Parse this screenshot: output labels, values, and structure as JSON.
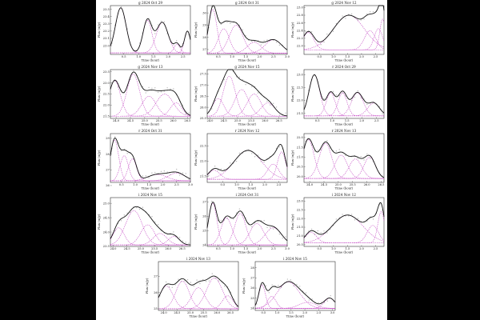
{
  "figure": {
    "background_color": "#000000",
    "sheet_color": "#ffffff",
    "total_color": "#111111",
    "component_color": "#c03fc0",
    "point_color": "#b9b9b9"
  },
  "chart_data": [
    {
      "type": "line",
      "title": "g 2024 Oct 29",
      "xlabel": "Time (hour)",
      "ylabel": "Flux (mJy)",
      "xlim": [
        0.05,
        2.75
      ],
      "ylim": [
        22.88,
        23.55
      ],
      "xticks": [
        0.5,
        1.0,
        1.5,
        2.0,
        2.5
      ],
      "xtick_labels": [
        "0.5",
        "1.0",
        "1.5",
        "2.0",
        "2.5"
      ],
      "yticks": [
        23.0,
        23.1,
        23.2,
        23.3,
        23.4,
        23.5
      ],
      "ytick_labels": [
        "23.0",
        "23.1",
        "23.2",
        "23.3",
        "23.4",
        "23.5"
      ],
      "baseline": 22.9,
      "components": [
        {
          "center": 0.4,
          "amplitude": 0.62,
          "width": 0.18
        },
        {
          "center": 1.3,
          "amplitude": 0.45,
          "width": 0.15
        },
        {
          "center": 1.8,
          "amplitude": 0.42,
          "width": 0.2
        },
        {
          "center": 2.3,
          "amplitude": 0.12,
          "width": 0.1
        },
        {
          "center": 2.65,
          "amplitude": 0.3,
          "width": 0.1
        }
      ]
    },
    {
      "type": "line",
      "title": "g 2024 Oct 31",
      "xlabel": "Time (hour)",
      "ylabel": "Flux (mJy)",
      "xlim": [
        0.1,
        3.0
      ],
      "ylim": [
        26.6,
        30.6
      ],
      "xticks": [
        0.5,
        1.0,
        1.5,
        2.0,
        2.5,
        3.0
      ],
      "xtick_labels": [
        "0.5",
        "1.0",
        "1.5",
        "2.0",
        "2.5",
        "3.0"
      ],
      "yticks": [
        27,
        28,
        29,
        30
      ],
      "ytick_labels": [
        "27",
        "28",
        "29",
        "30"
      ],
      "baseline": 26.7,
      "components": [
        {
          "center": 0.3,
          "amplitude": 3.6,
          "width": 0.15
        },
        {
          "center": 0.7,
          "amplitude": 2.0,
          "width": 0.2
        },
        {
          "center": 1.15,
          "amplitude": 2.3,
          "width": 0.25
        },
        {
          "center": 1.8,
          "amplitude": 0.9,
          "width": 0.25
        },
        {
          "center": 2.5,
          "amplitude": 1.1,
          "width": 0.3
        }
      ]
    },
    {
      "type": "line",
      "title": "g 2024 Nov 12",
      "xlabel": "Time (hour)",
      "ylabel": "Flux (mJy)",
      "xlim": [
        -0.05,
        2.8
      ],
      "ylim": [
        21.78,
        23.05
      ],
      "xticks": [
        0.5,
        1.0,
        1.5,
        2.0,
        2.5
      ],
      "xtick_labels": [
        "0.5",
        "1.0",
        "1.5",
        "2.0",
        "2.5"
      ],
      "yticks": [
        22.0,
        22.2,
        22.4,
        22.6,
        22.8,
        23.0
      ],
      "ytick_labels": [
        "22.0",
        "22.2",
        "22.4",
        "22.6",
        "22.8",
        "23.0"
      ],
      "baseline": 21.9,
      "components": [
        {
          "center": 0.1,
          "amplitude": 0.45,
          "width": 0.2
        },
        {
          "center": 1.55,
          "amplitude": 0.9,
          "width": 0.55
        },
        {
          "center": 2.3,
          "amplitude": 0.5,
          "width": 0.2
        },
        {
          "center": 2.6,
          "amplitude": 0.55,
          "width": 0.15
        },
        {
          "center": 2.75,
          "amplitude": 0.8,
          "width": 0.1
        }
      ]
    },
    {
      "type": "line",
      "title": "g 2024 Nov 13",
      "xlabel": "Time (hour)",
      "ylabel": "Flux (mJy)",
      "xlim": [
        23.8,
        26.6
      ],
      "ylim": [
        21.4,
        23.6
      ],
      "xticks": [
        24.0,
        24.5,
        25.0,
        25.5,
        26.0,
        26.5
      ],
      "xtick_labels": [
        "24.0",
        "24.5",
        "25.0",
        "25.5",
        "26.0",
        "26.5"
      ],
      "yticks": [
        21.5,
        22.0,
        22.5,
        23.0,
        23.5
      ],
      "ytick_labels": [
        "21.5",
        "22.0",
        "22.5",
        "23.0",
        "23.5"
      ],
      "baseline": 21.5,
      "components": [
        {
          "center": 23.95,
          "amplitude": 1.6,
          "width": 0.2
        },
        {
          "center": 24.6,
          "amplitude": 1.9,
          "width": 0.22
        },
        {
          "center": 25.15,
          "amplitude": 0.9,
          "width": 0.25
        },
        {
          "center": 25.7,
          "amplitude": 1.0,
          "width": 0.3
        },
        {
          "center": 26.1,
          "amplitude": 0.6,
          "width": 0.2
        }
      ]
    },
    {
      "type": "line",
      "title": "g 2024 Nov 15",
      "xlabel": "Time (hour)",
      "ylabel": "Flux (mJy)",
      "xlim": [
        23.9,
        26.8
      ],
      "ylim": [
        25.5,
        27.7
      ],
      "xticks": [
        24.0,
        24.5,
        25.0,
        25.5,
        26.0,
        26.5
      ],
      "xtick_labels": [
        "24.0",
        "24.5",
        "25.0",
        "25.5",
        "26.0",
        "26.5"
      ],
      "yticks": [
        25.5,
        26.0,
        26.5,
        27.0,
        27.5
      ],
      "ytick_labels": [
        "25.5",
        "26.0",
        "26.5",
        "27.0",
        "27.5"
      ],
      "baseline": 25.6,
      "components": [
        {
          "center": 24.3,
          "amplitude": 0.8,
          "width": 0.2
        },
        {
          "center": 24.7,
          "amplitude": 1.8,
          "width": 0.22
        },
        {
          "center": 25.15,
          "amplitude": 1.2,
          "width": 0.25
        },
        {
          "center": 25.6,
          "amplitude": 1.0,
          "width": 0.25
        },
        {
          "center": 26.1,
          "amplitude": 0.6,
          "width": 0.25
        }
      ]
    },
    {
      "type": "line",
      "title": "r 2024 Oct 29",
      "xlabel": "Time (hour)",
      "ylabel": "Flux (mJy)",
      "xlim": [
        0.05,
        2.75
      ],
      "ylim": [
        21.3,
        23.2
      ],
      "xticks": [
        0.5,
        1.0,
        1.5,
        2.0,
        2.5
      ],
      "xtick_labels": [
        "0.5",
        "1.0",
        "1.5",
        "2.0",
        "2.5"
      ],
      "yticks": [
        21.5,
        22.0,
        22.5,
        23.0
      ],
      "ytick_labels": [
        "21.5",
        "22.0",
        "22.5",
        "23.0"
      ],
      "baseline": 21.4,
      "components": [
        {
          "center": 0.4,
          "amplitude": 1.6,
          "width": 0.18
        },
        {
          "center": 0.95,
          "amplitude": 0.9,
          "width": 0.15
        },
        {
          "center": 1.35,
          "amplitude": 0.9,
          "width": 0.15
        },
        {
          "center": 1.85,
          "amplitude": 0.9,
          "width": 0.2
        },
        {
          "center": 2.4,
          "amplitude": 0.5,
          "width": 0.2
        }
      ]
    },
    {
      "type": "line",
      "title": "r 2024 Oct 31",
      "xlabel": "Time (hour)",
      "ylabel": "Flux (mJy)",
      "xlim": [
        0.1,
        3.0
      ],
      "ylim": [
        26.2,
        29.3
      ],
      "xticks": [
        0.5,
        1.0,
        1.5,
        2.0,
        2.5,
        3.0
      ],
      "xtick_labels": [
        "0.5",
        "1.0",
        "1.5",
        "2.0",
        "2.5",
        "3.0"
      ],
      "yticks": [
        26,
        27,
        28,
        29
      ],
      "ytick_labels": [
        "26",
        "27",
        "28",
        "29"
      ],
      "baseline": 26.3,
      "components": [
        {
          "center": 0.25,
          "amplitude": 2.6,
          "width": 0.15
        },
        {
          "center": 0.6,
          "amplitude": 1.6,
          "width": 0.15
        },
        {
          "center": 0.9,
          "amplitude": 1.4,
          "width": 0.15
        },
        {
          "center": 1.8,
          "amplitude": 0.4,
          "width": 0.35
        },
        {
          "center": 2.5,
          "amplitude": 0.5,
          "width": 0.3
        }
      ]
    },
    {
      "type": "line",
      "title": "r 2024 Nov 12",
      "xlabel": "Time (hour)",
      "ylabel": "Flux (mJy)",
      "xlim": [
        -0.05,
        2.8
      ],
      "ylim": [
        21.3,
        22.9
      ],
      "xticks": [
        0.5,
        1.0,
        1.5,
        2.0,
        2.5
      ],
      "xtick_labels": [
        "0.5",
        "1.0",
        "1.5",
        "2.0",
        "2.5"
      ],
      "yticks": [
        21.5,
        22.0,
        22.5
      ],
      "ytick_labels": [
        "21.5",
        "22.0",
        "22.5"
      ],
      "baseline": 21.4,
      "components": [
        {
          "center": 0.2,
          "amplitude": 0.3,
          "width": 0.2
        },
        {
          "center": 1.4,
          "amplitude": 0.95,
          "width": 0.5
        },
        {
          "center": 2.3,
          "amplitude": 0.5,
          "width": 0.2
        },
        {
          "center": 2.6,
          "amplitude": 0.9,
          "width": 0.15
        }
      ]
    },
    {
      "type": "line",
      "title": "r 2024 Nov 13",
      "xlabel": "Time (hour)",
      "ylabel": "Flux (mJy)",
      "xlim": [
        23.8,
        26.6
      ],
      "ylim": [
        19.7,
        22.2
      ],
      "xticks": [
        24.0,
        24.5,
        25.0,
        25.5,
        26.0,
        26.5
      ],
      "xtick_labels": [
        "24.0",
        "24.5",
        "25.0",
        "25.5",
        "26.0",
        "26.5"
      ],
      "yticks": [
        20.0,
        20.5,
        21.0,
        21.5,
        22.0
      ],
      "ytick_labels": [
        "20.0",
        "20.5",
        "21.0",
        "21.5",
        "22.0"
      ],
      "baseline": 19.9,
      "components": [
        {
          "center": 23.95,
          "amplitude": 2.0,
          "width": 0.2
        },
        {
          "center": 24.55,
          "amplitude": 1.8,
          "width": 0.22
        },
        {
          "center": 25.1,
          "amplitude": 1.2,
          "width": 0.22
        },
        {
          "center": 25.6,
          "amplitude": 1.0,
          "width": 0.22
        },
        {
          "center": 26.1,
          "amplitude": 1.1,
          "width": 0.2
        }
      ]
    },
    {
      "type": "line",
      "title": "i 2024 Nov 15",
      "xlabel": "Time (hour)",
      "ylabel": "Flux (mJy)",
      "xlim": [
        23.9,
        26.8
      ],
      "ylim": [
        23.5,
        25.2
      ],
      "xticks": [
        24.0,
        24.5,
        25.0,
        25.5,
        26.0,
        26.5
      ],
      "xtick_labels": [
        "24.0",
        "24.5",
        "25.0",
        "25.5",
        "26.0",
        "26.5"
      ],
      "yticks": [
        23.5,
        24.0,
        24.5,
        25.0
      ],
      "ytick_labels": [
        "23.5",
        "24.0",
        "24.5",
        "25.0"
      ],
      "baseline": 23.55,
      "components": [
        {
          "center": 24.2,
          "amplitude": 0.6,
          "width": 0.2
        },
        {
          "center": 24.75,
          "amplitude": 1.2,
          "width": 0.3
        },
        {
          "center": 25.25,
          "amplitude": 0.7,
          "width": 0.25
        },
        {
          "center": 25.7,
          "amplitude": 0.4,
          "width": 0.25
        },
        {
          "center": 26.2,
          "amplitude": 0.3,
          "width": 0.2
        }
      ]
    },
    {
      "type": "line",
      "title": "i 2024 Oct 31",
      "xlabel": "Time (hour)",
      "ylabel": "Flux (mJy)",
      "xlim": [
        0.1,
        3.0
      ],
      "ylim": [
        23.9,
        27.3
      ],
      "xticks": [
        0.5,
        1.0,
        1.5,
        2.0,
        2.5,
        3.0
      ],
      "xtick_labels": [
        "0.5",
        "1.0",
        "1.5",
        "2.0",
        "2.5",
        "3.0"
      ],
      "yticks": [
        24,
        25,
        26,
        27
      ],
      "ytick_labels": [
        "24",
        "25",
        "26",
        "27"
      ],
      "baseline": 24.0,
      "components": [
        {
          "center": 0.3,
          "amplitude": 2.9,
          "width": 0.15
        },
        {
          "center": 0.8,
          "amplitude": 1.9,
          "width": 0.2
        },
        {
          "center": 1.3,
          "amplitude": 2.2,
          "width": 0.2
        },
        {
          "center": 1.9,
          "amplitude": 1.5,
          "width": 0.25
        },
        {
          "center": 2.5,
          "amplitude": 1.2,
          "width": 0.3
        }
      ]
    },
    {
      "type": "line",
      "title": "i 2024 Nov 12",
      "xlabel": "Time (hour)",
      "ylabel": "Flux (mJy)",
      "xlim": [
        -0.05,
        2.8
      ],
      "ylim": [
        20.4,
        23.2
      ],
      "xticks": [
        0.5,
        1.0,
        1.5,
        2.0,
        2.5
      ],
      "xtick_labels": [
        "0.5",
        "1.0",
        "1.5",
        "2.0",
        "2.5"
      ],
      "yticks": [
        20.5,
        21.0,
        21.5,
        22.0,
        22.5,
        23.0
      ],
      "ytick_labels": [
        "20.5",
        "21.0",
        "21.5",
        "22.0",
        "22.5",
        "23.0"
      ],
      "baseline": 20.6,
      "components": [
        {
          "center": 0.2,
          "amplitude": 0.6,
          "width": 0.2
        },
        {
          "center": 1.5,
          "amplitude": 1.6,
          "width": 0.55
        },
        {
          "center": 2.4,
          "amplitude": 1.0,
          "width": 0.2
        },
        {
          "center": 2.7,
          "amplitude": 1.8,
          "width": 0.12
        }
      ]
    },
    {
      "type": "line",
      "title": "i 2024 Nov 13",
      "xlabel": "Time (hour)",
      "ylabel": "Flux (mJy)",
      "xlim": [
        23.8,
        26.8
      ],
      "ylim": [
        24.9,
        27.9
      ],
      "xticks": [
        24.0,
        24.5,
        25.0,
        25.5,
        26.0,
        26.5
      ],
      "xtick_labels": [
        "24.0",
        "24.5",
        "25.0",
        "25.5",
        "26.0",
        "26.5"
      ],
      "yticks": [
        25,
        26,
        27
      ],
      "ytick_labels": [
        "25",
        "26",
        "27"
      ],
      "baseline": 25.0,
      "components": [
        {
          "center": 24.1,
          "amplitude": 1.4,
          "width": 0.25
        },
        {
          "center": 24.7,
          "amplitude": 1.7,
          "width": 0.25
        },
        {
          "center": 25.3,
          "amplitude": 1.3,
          "width": 0.25
        },
        {
          "center": 25.9,
          "amplitude": 1.9,
          "width": 0.3
        },
        {
          "center": 26.4,
          "amplitude": 0.8,
          "width": 0.2
        }
      ]
    },
    {
      "type": "line",
      "title": "i 2024 Nov 15",
      "xlabel": "Time (hour)",
      "ylabel": "Flux (mJy)",
      "xlim": [
        0.2,
        3.1
      ],
      "ylim": [
        23.8,
        28.6
      ],
      "xticks": [
        0.5,
        1.0,
        1.5,
        2.0,
        2.5,
        3.0
      ],
      "xtick_labels": [
        "0.5",
        "1.0",
        "1.5",
        "2.0",
        "2.5",
        "3.0"
      ],
      "yticks": [
        24,
        25,
        26,
        27,
        28
      ],
      "ytick_labels": [
        "24",
        "25",
        "26",
        "27",
        "28"
      ],
      "baseline": 24.0,
      "components": [
        {
          "center": 0.45,
          "amplitude": 2.3,
          "width": 0.12
        },
        {
          "center": 0.8,
          "amplitude": 1.2,
          "width": 0.15
        },
        {
          "center": 1.4,
          "amplitude": 2.6,
          "width": 0.4
        },
        {
          "center": 2.1,
          "amplitude": 0.6,
          "width": 0.3
        },
        {
          "center": 2.9,
          "amplitude": 1.0,
          "width": 0.2
        }
      ]
    }
  ]
}
